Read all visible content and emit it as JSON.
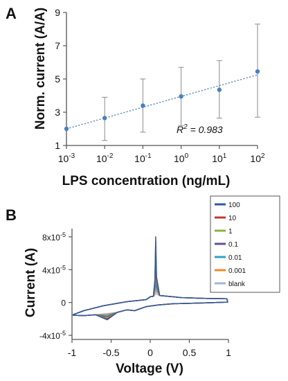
{
  "chart_data": [
    {
      "panel": "A",
      "type": "scatter",
      "x_scale": "log",
      "ylabel": "Norm. current (A/A)",
      "xlabel": "LPS concentration (ng/mL)",
      "x_ticks": [
        "10",
        "10",
        "10",
        "10",
        "10",
        "10"
      ],
      "x_tick_exponents": [
        "-3",
        "-2",
        "-1",
        "0",
        "1",
        "2"
      ],
      "y_ticks": [
        "1",
        "3",
        "5",
        "7",
        "9"
      ],
      "ylim": [
        1,
        9
      ],
      "xlim": [
        0.001,
        100
      ],
      "x": [
        0.001,
        0.01,
        0.1,
        1,
        10,
        100
      ],
      "y": [
        2.0,
        2.65,
        3.4,
        3.95,
        4.35,
        5.45
      ],
      "error_upper": [
        2.0,
        3.9,
        5.0,
        5.7,
        6.1,
        8.3
      ],
      "error_lower": [
        2.0,
        1.3,
        1.8,
        2.2,
        2.65,
        2.7
      ],
      "trendline": {
        "style": "dotted",
        "color": "#4a7fc4",
        "y_start": 2.0,
        "y_end": 5.25
      },
      "annotation_r2_left": "R",
      "annotation_r2_sup": "2",
      "annotation_r2_right": " = 0.983",
      "marker_color": "#4a7fc4",
      "error_color": "#8a8a8a",
      "grid": false
    },
    {
      "panel": "B",
      "type": "line",
      "xlabel": "Voltage (V)",
      "ylabel": "Current (A)",
      "x_ticks": [
        "-1",
        "-0.5",
        "0",
        "0.5",
        "1"
      ],
      "y_ticks": [
        "-4x10",
        "0",
        "4x10",
        "8x10"
      ],
      "y_tick_exponents": [
        "-5",
        "",
        "-5",
        "-5"
      ],
      "xlim": [
        -1,
        1
      ],
      "ylim": [
        -4.5e-05,
        9e-05
      ],
      "legend_position": "top-right",
      "series": [
        {
          "name": "100",
          "color": "#2c5aa0",
          "peak_ox": 8e-05,
          "peak_red": -2.1e-05
        },
        {
          "name": "10",
          "color": "#c0392b",
          "peak_ox": 7.4e-05,
          "peak_red": -2e-05
        },
        {
          "name": "1",
          "color": "#8db33a",
          "peak_ox": 6.4e-05,
          "peak_red": -1.9e-05
        },
        {
          "name": "0.1",
          "color": "#6a4c93",
          "peak_ox": 5.4e-05,
          "peak_red": -1.75e-05
        },
        {
          "name": "0.01",
          "color": "#2aa4c4",
          "peak_ox": 4.4e-05,
          "peak_red": -1.6e-05
        },
        {
          "name": "0.001",
          "color": "#f0892a",
          "peak_ox": 3.5e-05,
          "peak_red": -1.45e-05
        },
        {
          "name": "blank",
          "color": "#9fb6d8",
          "peak_ox": 2.5e-05,
          "peak_red": -1.35e-05
        }
      ]
    }
  ]
}
